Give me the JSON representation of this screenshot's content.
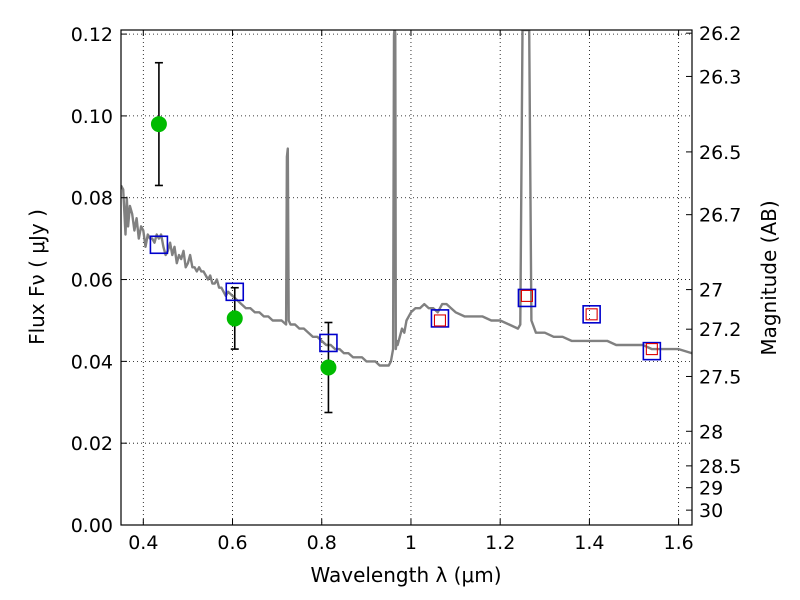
{
  "chart_data": {
    "type": "scatter",
    "xlabel": "Wavelength  λ (μm)",
    "ylabel": "Flux  Fν  ( μJy )",
    "ylabel_right": "Magnitude (AB)",
    "xlim": [
      0.35,
      1.63
    ],
    "ylim": [
      0.0,
      0.121
    ],
    "grid": true,
    "x_ticks": [
      {
        "value": 0.4,
        "label": "0.4"
      },
      {
        "value": 0.6,
        "label": "0.6"
      },
      {
        "value": 0.8,
        "label": "0.8"
      },
      {
        "value": 1.0,
        "label": "1"
      },
      {
        "value": 1.2,
        "label": "1.2"
      },
      {
        "value": 1.4,
        "label": "1.4"
      },
      {
        "value": 1.6,
        "label": "1.6"
      }
    ],
    "y_ticks": [
      {
        "value": 0.0,
        "label": "0.00"
      },
      {
        "value": 0.02,
        "label": "0.02"
      },
      {
        "value": 0.04,
        "label": "0.04"
      },
      {
        "value": 0.06,
        "label": "0.06"
      },
      {
        "value": 0.08,
        "label": "0.08"
      },
      {
        "value": 0.1,
        "label": "0.10"
      },
      {
        "value": 0.12,
        "label": "0.12"
      }
    ],
    "mag_ticks": [
      {
        "value": 26.2,
        "label": "26.2"
      },
      {
        "value": 26.3,
        "label": "26.3"
      },
      {
        "value": 26.5,
        "label": "26.5"
      },
      {
        "value": 26.7,
        "label": "26.7"
      },
      {
        "value": 27,
        "label": "27"
      },
      {
        "value": 27.2,
        "label": "27.2"
      },
      {
        "value": 27.5,
        "label": "27.5"
      },
      {
        "value": 28,
        "label": "28"
      },
      {
        "value": 28.5,
        "label": "28.5"
      },
      {
        "value": 29,
        "label": "29"
      },
      {
        "value": 30,
        "label": "30"
      }
    ],
    "series": [
      {
        "name": "model_sed",
        "kind": "line",
        "color": "#808080",
        "x": [
          0.35,
          0.355,
          0.36,
          0.363,
          0.366,
          0.37,
          0.375,
          0.38,
          0.385,
          0.39,
          0.395,
          0.4,
          0.405,
          0.41,
          0.415,
          0.42,
          0.425,
          0.43,
          0.435,
          0.44,
          0.445,
          0.45,
          0.455,
          0.46,
          0.465,
          0.47,
          0.475,
          0.48,
          0.485,
          0.49,
          0.495,
          0.5,
          0.505,
          0.51,
          0.515,
          0.52,
          0.525,
          0.53,
          0.535,
          0.54,
          0.545,
          0.55,
          0.555,
          0.56,
          0.565,
          0.57,
          0.575,
          0.58,
          0.585,
          0.59,
          0.6,
          0.61,
          0.62,
          0.63,
          0.64,
          0.65,
          0.66,
          0.67,
          0.68,
          0.69,
          0.7,
          0.71,
          0.72,
          0.722,
          0.724,
          0.726,
          0.73,
          0.74,
          0.75,
          0.76,
          0.77,
          0.78,
          0.79,
          0.8,
          0.81,
          0.82,
          0.83,
          0.84,
          0.85,
          0.86,
          0.87,
          0.88,
          0.89,
          0.9,
          0.91,
          0.92,
          0.93,
          0.94,
          0.95,
          0.955,
          0.96,
          0.962,
          0.963,
          0.964,
          0.965,
          0.966,
          0.968,
          0.97,
          0.975,
          0.98,
          0.985,
          0.99,
          1.0,
          1.01,
          1.02,
          1.03,
          1.04,
          1.05,
          1.06,
          1.07,
          1.08,
          1.09,
          1.1,
          1.12,
          1.14,
          1.16,
          1.18,
          1.2,
          1.22,
          1.24,
          1.245,
          1.25,
          1.255,
          1.26,
          1.265,
          1.27,
          1.28,
          1.3,
          1.32,
          1.34,
          1.36,
          1.38,
          1.4,
          1.42,
          1.44,
          1.46,
          1.48,
          1.5,
          1.52,
          1.54,
          1.56,
          1.58,
          1.6,
          1.63
        ],
        "y": [
          0.083,
          0.082,
          0.071,
          0.08,
          0.073,
          0.078,
          0.076,
          0.072,
          0.075,
          0.07,
          0.073,
          0.072,
          0.068,
          0.071,
          0.07,
          0.07,
          0.069,
          0.071,
          0.07,
          0.071,
          0.068,
          0.066,
          0.067,
          0.069,
          0.066,
          0.068,
          0.064,
          0.066,
          0.065,
          0.067,
          0.063,
          0.064,
          0.066,
          0.063,
          0.063,
          0.062,
          0.063,
          0.062,
          0.062,
          0.061,
          0.06,
          0.061,
          0.059,
          0.059,
          0.06,
          0.058,
          0.058,
          0.057,
          0.056,
          0.057,
          0.056,
          0.055,
          0.054,
          0.053,
          0.053,
          0.052,
          0.052,
          0.051,
          0.051,
          0.05,
          0.05,
          0.05,
          0.049,
          0.09,
          0.092,
          0.05,
          0.049,
          0.049,
          0.048,
          0.048,
          0.047,
          0.046,
          0.046,
          0.045,
          0.044,
          0.044,
          0.043,
          0.043,
          0.042,
          0.042,
          0.041,
          0.041,
          0.041,
          0.04,
          0.04,
          0.04,
          0.039,
          0.039,
          0.039,
          0.04,
          0.043,
          0.12,
          0.121,
          0.121,
          0.12,
          0.043,
          0.045,
          0.044,
          0.046,
          0.048,
          0.047,
          0.05,
          0.052,
          0.053,
          0.053,
          0.054,
          0.053,
          0.053,
          0.052,
          0.054,
          0.054,
          0.053,
          0.052,
          0.051,
          0.051,
          0.051,
          0.05,
          0.05,
          0.049,
          0.048,
          0.049,
          0.121,
          0.121,
          0.121,
          0.121,
          0.05,
          0.047,
          0.047,
          0.046,
          0.046,
          0.045,
          0.045,
          0.045,
          0.045,
          0.045,
          0.044,
          0.044,
          0.044,
          0.044,
          0.043,
          0.043,
          0.043,
          0.043,
          0.042
        ]
      },
      {
        "name": "observed_flux",
        "kind": "points",
        "color": "#00bb00",
        "x": [
          0.435,
          0.605,
          0.815
        ],
        "y": [
          0.098,
          0.0505,
          0.0385
        ],
        "yerr": [
          0.015,
          0.0075,
          0.011
        ]
      },
      {
        "name": "model_photometry",
        "kind": "squares",
        "color": "#0000cc",
        "x": [
          0.435,
          0.605,
          0.815,
          1.065,
          1.26,
          1.405,
          1.54
        ],
        "y": [
          0.0685,
          0.057,
          0.0445,
          0.0505,
          0.0555,
          0.0515,
          0.0425
        ]
      },
      {
        "name": "model_photometry_small",
        "kind": "squares",
        "color": "#dd0000",
        "x": [
          1.065,
          1.26,
          1.405,
          1.54
        ],
        "y": [
          0.05,
          0.056,
          0.0515,
          0.043
        ]
      }
    ]
  }
}
